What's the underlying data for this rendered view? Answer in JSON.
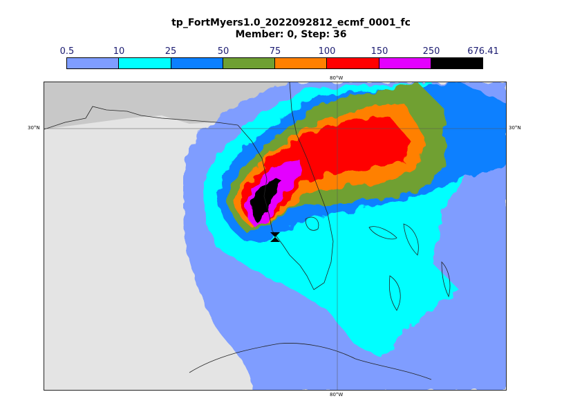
{
  "title": {
    "line1": "tp_FortMyers1.0_2022092812_ecmf_0001_fc",
    "line2": "Member: 0, Step: 36"
  },
  "colorbar": {
    "labels": [
      "0.5",
      "10",
      "25",
      "50",
      "75",
      "100",
      "150",
      "250",
      "676.41"
    ],
    "colors": [
      "#7f9dff",
      "#00ffff",
      "#0b80ff",
      "#6fa033",
      "#ff8000",
      "#ff0000",
      "#e400ff",
      "#000000"
    ]
  },
  "map": {
    "meridian_label": "80°W",
    "parallel_label": "30°N",
    "colors": {
      "land": "#e4e4e4",
      "ocean_land_dark": "#c8c8c8",
      "coast": "#222222"
    }
  }
}
